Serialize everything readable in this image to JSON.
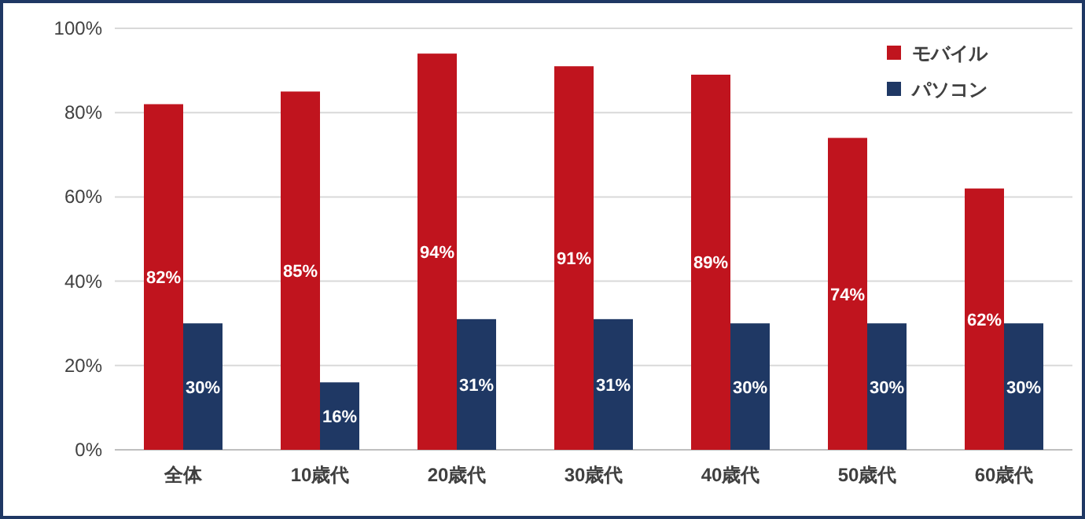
{
  "chart_data": {
    "type": "bar",
    "categories": [
      "全体",
      "10歳代",
      "20歳代",
      "30歳代",
      "40歳代",
      "50歳代",
      "60歳代"
    ],
    "series": [
      {
        "name": "モバイル",
        "color": "#c0141e",
        "values": [
          82,
          85,
          94,
          91,
          89,
          74,
          62
        ],
        "value_labels": [
          "82%",
          "85%",
          "94%",
          "91%",
          "89%",
          "74%",
          "62%"
        ]
      },
      {
        "name": "パソコン",
        "color": "#1f3864",
        "values": [
          30,
          16,
          31,
          31,
          30,
          30,
          30
        ],
        "value_labels": [
          "30%",
          "16%",
          "31%",
          "31%",
          "30%",
          "30%",
          "30%"
        ]
      }
    ],
    "ylim": [
      0,
      100
    ],
    "yticks": [
      {
        "value": 0,
        "label": "0%"
      },
      {
        "value": 20,
        "label": "20%"
      },
      {
        "value": 40,
        "label": "40%"
      },
      {
        "value": 60,
        "label": "60%"
      },
      {
        "value": 80,
        "label": "80%"
      },
      {
        "value": 100,
        "label": "100%"
      }
    ],
    "grid": "y",
    "legend": "top right"
  }
}
